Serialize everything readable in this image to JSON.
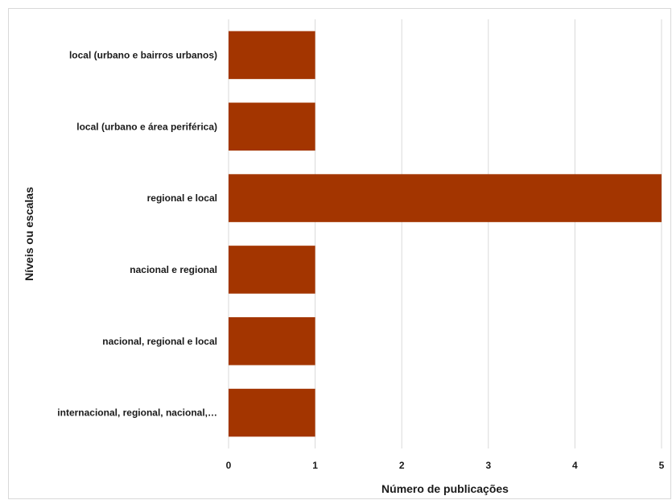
{
  "chart_data": {
    "type": "bar",
    "orientation": "horizontal",
    "categories": [
      "local (urbano e bairros urbanos)",
      "local (urbano e área periférica)",
      "regional e local",
      "nacional e regional",
      "nacional, regional e local",
      "internacional, regional, nacional,…"
    ],
    "values": [
      1,
      1,
      5,
      1,
      1,
      1
    ],
    "xlabel": "Número de publicações",
    "ylabel": "Níveis ou escalas",
    "xlim": [
      0,
      5
    ],
    "xticks": [
      "0",
      "1",
      "2",
      "3",
      "4",
      "5"
    ],
    "grid": "vertical",
    "legend": "none",
    "bar_color": "#a33500",
    "grid_color": "#d9d9d9"
  }
}
